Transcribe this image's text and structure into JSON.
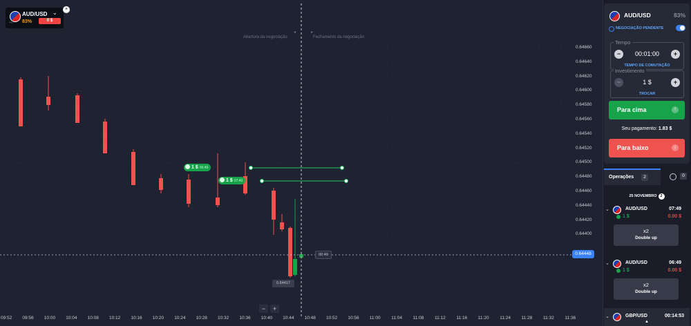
{
  "chart": {
    "asset_chip": {
      "name": "AUD/USD",
      "payout": "83%",
      "sub": "+0",
      "badge": "0 $"
    },
    "open_label": "Abertura da negociação",
    "close_label": "Fechamento da negociação",
    "price_ticks": [
      "0.64660",
      "0.64640",
      "0.64620",
      "0.64600",
      "0.64580",
      "0.64560",
      "0.64540",
      "0.64520",
      "0.64500",
      "0.64480",
      "0.64460",
      "0.64440",
      "0.64420",
      "0.64400"
    ],
    "time_ticks": [
      "09:52",
      "09:56",
      "10:00",
      "10:04",
      "10:08",
      "10:12",
      "10:16",
      "10:20",
      "10:24",
      "10:28",
      "10:32",
      "10:36",
      "10:40",
      "10:44",
      "10:48",
      "10:52",
      "10:56",
      "11:00",
      "11:04",
      "11:08",
      "11:12",
      "11:16",
      "11:20",
      "11:24",
      "11:28",
      "11:32",
      "11:36"
    ],
    "current_price": "0.64448",
    "timer": "00:49",
    "low_price": "0.64417",
    "zoom_out": "−",
    "zoom_in": "+",
    "trade_tags": [
      {
        "amount": "1 $",
        "time": "06:49"
      },
      {
        "amount": "1 $",
        "time": "07:49"
      }
    ],
    "colors": {
      "bear": "#ef5350",
      "bull": "#16a34a",
      "grid": "#2a2e3c"
    }
  },
  "trade_panel": {
    "asset": "AUD/USD",
    "payout": "83%",
    "pending_label": "NEGOCIAÇÃO PENDENTE",
    "time_title": "Tempo",
    "time_value": "00:01:00",
    "time_link": "TEMPO DE COMUTAÇÃO",
    "invest_title": "Investimento",
    "invest_value": "1 $",
    "invest_link": "TROCAR",
    "up_label": "Para cima",
    "payout_label": "Seu pagamento:",
    "payout_value": "1.83 $",
    "down_label": "Para baixo"
  },
  "operations": {
    "tab_label": "Operações",
    "tab_count": "2",
    "clock_count": "0",
    "date": "25 NOVEMBRO",
    "date_count": "2",
    "items": [
      {
        "asset": "AUD/USD",
        "time": "07:49",
        "amount": "1 $",
        "payout": "0.00 $",
        "multiplier": "x2",
        "action": "Double up"
      },
      {
        "asset": "AUD/USD",
        "time": "06:49",
        "amount": "1 $",
        "payout": "0.00 $",
        "multiplier": "x2",
        "action": "Double up"
      }
    ],
    "minimized": {
      "asset": "GBP/USD",
      "time": "00:14:53"
    }
  }
}
